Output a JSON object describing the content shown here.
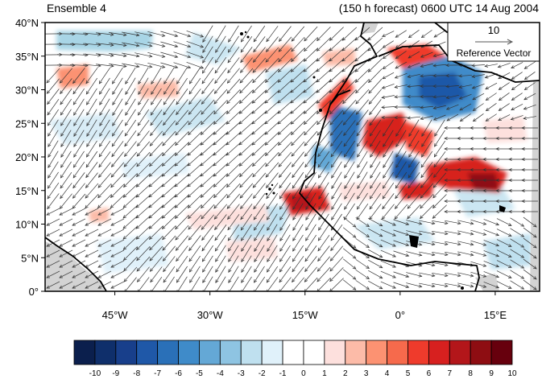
{
  "header": {
    "left_title": "Ensemble 4",
    "right_title": "(150 h forecast) 0600 UTC 14 Aug 2004"
  },
  "map": {
    "lon_range": [
      -56,
      22
    ],
    "lat_range": [
      0,
      40
    ],
    "lat_ticks": [
      {
        "value": 0,
        "label": "0°"
      },
      {
        "value": 5,
        "label": "5°N"
      },
      {
        "value": 10,
        "label": "10°N"
      },
      {
        "value": 15,
        "label": "15°N"
      },
      {
        "value": 20,
        "label": "20°N"
      },
      {
        "value": 25,
        "label": "25°N"
      },
      {
        "value": 30,
        "label": "30°N"
      },
      {
        "value": 35,
        "label": "35°N"
      },
      {
        "value": 40,
        "label": "40°N"
      }
    ],
    "lon_ticks": [
      {
        "value": -45,
        "label": "45°W"
      },
      {
        "value": -30,
        "label": "30°W"
      },
      {
        "value": -15,
        "label": "15°W"
      },
      {
        "value": 0,
        "label": "0°"
      },
      {
        "value": 15,
        "label": "15°E"
      }
    ],
    "reference_vector": {
      "magnitude": "10",
      "label": "Reference Vector"
    }
  },
  "colorbar": {
    "labels": [
      "-10",
      "-9",
      "-8",
      "-7",
      "-6",
      "-5",
      "-4",
      "-3",
      "-2",
      "-1",
      "0",
      "1",
      "2",
      "3",
      "4",
      "5",
      "6",
      "7",
      "8",
      "9",
      "10"
    ],
    "colors": [
      "#0b1f4d",
      "#0f2f6b",
      "#183f8b",
      "#1f58a8",
      "#2a70b8",
      "#3f8bc9",
      "#64a8d6",
      "#8ec4e2",
      "#bfe0ef",
      "#e0f1fa",
      "#ffffff",
      "#ffffff",
      "#fde0dd",
      "#fcbba8",
      "#fc9272",
      "#f66a4c",
      "#ef3b2c",
      "#d7201f",
      "#b3161a",
      "#8e0d12",
      "#67000d"
    ]
  },
  "colors": {
    "land_mask": "#d3d3d3",
    "arrow": "#333333",
    "coast": "#000000"
  }
}
